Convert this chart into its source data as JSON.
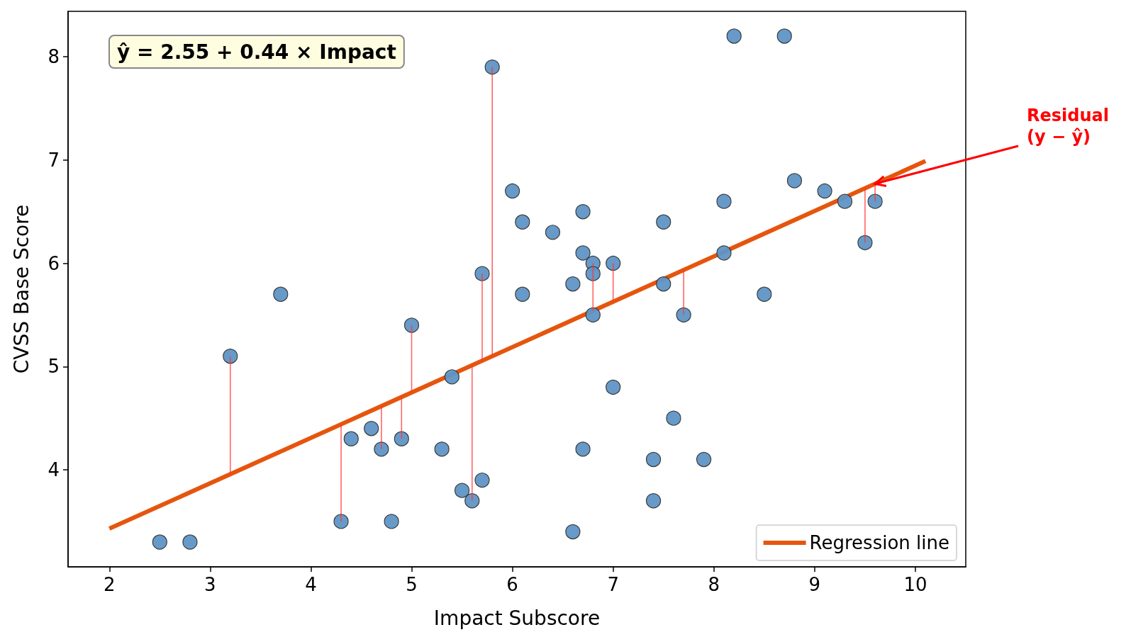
{
  "chart_data": {
    "type": "scatter",
    "xlabel": "Impact Subscore",
    "ylabel": "CVSS Base Score",
    "xlim": [
      1.59,
      10.5
    ],
    "xticks": [
      2,
      3,
      4,
      5,
      6,
      7,
      8,
      9,
      10
    ],
    "ylim": [
      3.06,
      8.44
    ],
    "yticks": [
      4,
      5,
      6,
      7,
      8
    ],
    "grid": false,
    "legend": "bottom right",
    "marker": "circle",
    "annotations": [
      "ŷ = 2.55 + 0.44 × Impact",
      {
        "text": "Residual\n(y − ŷ)",
        "x": 9.6,
        "y": 6.77
      }
    ],
    "series": [
      {
        "color": "#5f95c6",
        "x": [
          2.5,
          2.8,
          3.2,
          3.7,
          4.3,
          4.4,
          4.6,
          4.7,
          4.8,
          4.9,
          5.0,
          5.3,
          5.4,
          5.5,
          5.6,
          5.7,
          5.7,
          5.8,
          6.0,
          6.1,
          6.1,
          6.4,
          6.6,
          6.6,
          6.7,
          6.7,
          6.7,
          6.8,
          6.8,
          6.8,
          7.0,
          7.0,
          7.4,
          7.4,
          7.5,
          7.5,
          7.6,
          7.7,
          7.9,
          8.1,
          8.1,
          8.2,
          8.5,
          8.7,
          8.8,
          9.1,
          9.3,
          9.5,
          9.6
        ],
        "values": [
          3.3,
          3.3,
          5.1,
          5.7,
          3.5,
          4.3,
          4.4,
          4.2,
          3.5,
          4.3,
          5.4,
          4.2,
          4.9,
          3.8,
          3.7,
          3.9,
          5.9,
          7.9,
          6.7,
          6.4,
          5.7,
          6.3,
          5.8,
          3.4,
          6.5,
          6.1,
          4.2,
          6.0,
          5.9,
          5.5,
          6.0,
          4.8,
          4.1,
          3.7,
          6.4,
          5.8,
          4.5,
          5.5,
          4.1,
          6.6,
          6.1,
          8.2,
          5.7,
          8.2,
          6.8,
          6.7,
          6.6,
          6.2,
          6.6
        ],
        "errors": [
          null,
          null,
          [
            3.96,
            5.1
          ],
          null,
          [
            3.5,
            4.44
          ],
          null,
          null,
          [
            4.2,
            4.62
          ],
          null,
          [
            4.3,
            4.71
          ],
          [
            4.75,
            5.4
          ],
          null,
          null,
          null,
          [
            3.7,
            5.01
          ],
          null,
          [
            5.06,
            5.9
          ],
          [
            5.1,
            7.9
          ],
          null,
          null,
          null,
          null,
          null,
          null,
          null,
          null,
          null,
          [
            5.54,
            6.0
          ],
          null,
          null,
          [
            5.63,
            6.0
          ],
          null,
          null,
          null,
          null,
          null,
          null,
          [
            5.5,
            5.94
          ],
          null,
          null,
          null,
          null,
          null,
          null,
          null,
          null,
          null,
          [
            6.2,
            6.73
          ],
          [
            6.6,
            6.77
          ]
        ]
      },
      {
        "type": "line",
        "name": "Regression line",
        "color": "#e6550d",
        "marker": "none",
        "line_style": "solid",
        "x": [
          2,
          10.1
        ],
        "values": [
          3.43,
          6.99
        ]
      }
    ]
  }
}
